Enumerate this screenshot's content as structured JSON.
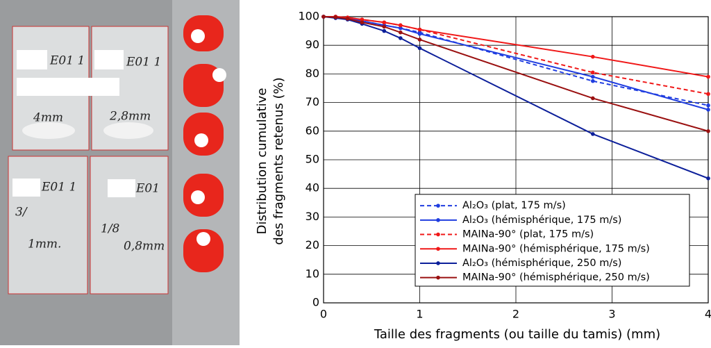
{
  "photo": {
    "labels": [
      "E01 1",
      "E01 1",
      "4mm",
      "2,8mm",
      "E01 1",
      "E01",
      "3/",
      "1mm.",
      "1/8",
      "0,8mm"
    ]
  },
  "chart_data": {
    "type": "line",
    "xlabel": "Taille des fragments (ou taille du tamis) (mm)",
    "ylabel": [
      "Distribution cumulative",
      "des fragments retenus (%)"
    ],
    "x": [
      0,
      0.125,
      0.25,
      0.4,
      0.63,
      0.8,
      1,
      2.8,
      4
    ],
    "xlim": [
      0,
      4
    ],
    "xticks": [
      0,
      1,
      2,
      3,
      4
    ],
    "ylim": [
      0,
      100
    ],
    "yticks": [
      0,
      10,
      20,
      30,
      40,
      50,
      60,
      70,
      80,
      90,
      100
    ],
    "grid": true,
    "legend": "lower right",
    "series": [
      {
        "name": "Al₂O₃ (plat, 175 m/s)",
        "color": "#1f3de0",
        "linestyle": "dashed",
        "values": [
          100,
          100,
          99.5,
          98.5,
          97,
          96,
          94.5,
          77.5,
          69
        ]
      },
      {
        "name": "Al₂O₃ (hémisphérique, 175 m/s)",
        "color": "#1f3de0",
        "linestyle": "solid",
        "values": [
          100,
          100,
          99.5,
          98.5,
          97,
          96,
          94,
          79,
          67.5
        ]
      },
      {
        "name": "MAINa-90° (plat, 175 m/s)",
        "color": "#f01818",
        "linestyle": "dashed",
        "values": [
          100,
          100,
          99.7,
          99,
          98,
          97,
          95.5,
          80.5,
          73
        ]
      },
      {
        "name": "MAINa-90° (hémisphérique, 175 m/s)",
        "color": "#f01818",
        "linestyle": "solid",
        "values": [
          100,
          100,
          99.7,
          99,
          98,
          97,
          95.5,
          86,
          79
        ]
      },
      {
        "name": "Al₂O₃ (hémisphérique, 250 m/s)",
        "color": "#0c1f9a",
        "linestyle": "solid",
        "values": [
          100,
          99.5,
          99,
          97.5,
          95,
          92.5,
          89,
          59,
          43.5
        ]
      },
      {
        "name": "MAINa-90° (hémisphérique, 250 m/s)",
        "color": "#9a1010",
        "linestyle": "solid",
        "values": [
          100,
          99.8,
          99.3,
          98,
          96.5,
          94.5,
          92,
          71.5,
          60
        ]
      }
    ]
  }
}
